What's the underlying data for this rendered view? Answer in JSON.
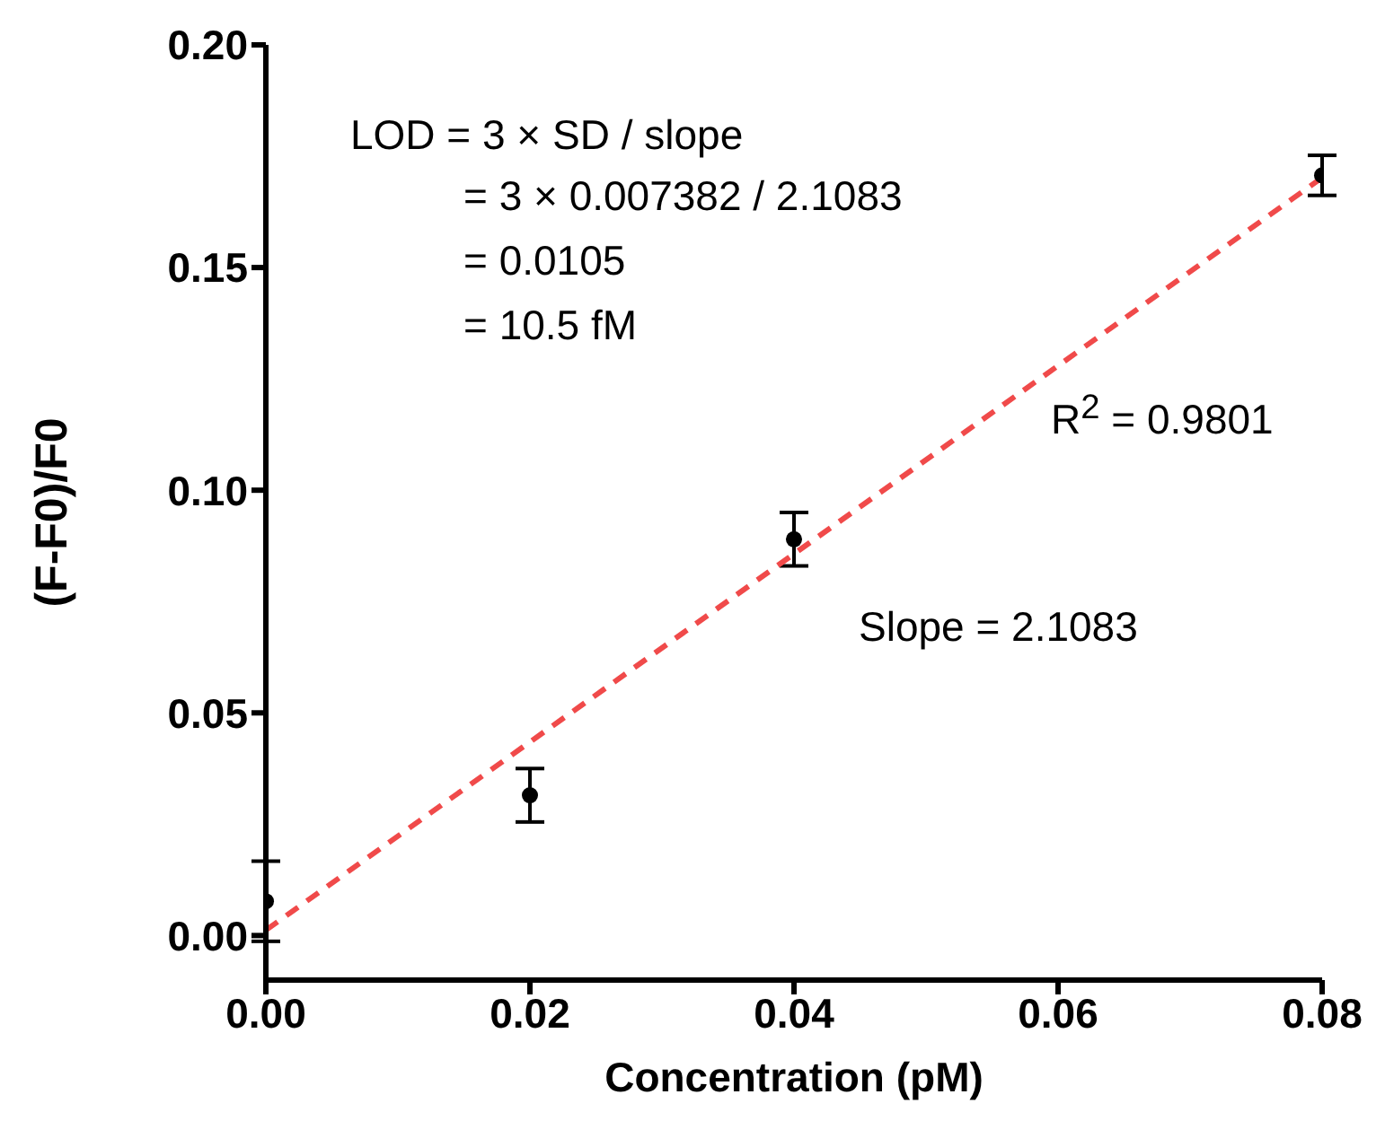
{
  "chart_data": {
    "type": "scatter",
    "xlabel": "Concentration (pM)",
    "ylabel": "(F-F0)/F0",
    "x": [
      0,
      0.02,
      0.04,
      0.08
    ],
    "series": [
      {
        "color": "#000000",
        "marker": "circle",
        "values": [
          0.0077,
          0.0315,
          0.089,
          0.1707
        ],
        "errors": [
          0.009,
          0.006,
          0.006,
          0.0045
        ]
      },
      {
        "type": "line",
        "color": "#f04a4a",
        "x": [
          0,
          0.08
        ],
        "values": [
          0.0012,
          0.1702
        ],
        "line_style": "dashed",
        "marker": "none"
      }
    ],
    "xlim": [
      0,
      0.08
    ],
    "xticks": [
      {
        "value": 0,
        "label": "0.00"
      },
      {
        "value": 0.02,
        "label": "0.02"
      },
      {
        "value": 0.04,
        "label": "0.04"
      },
      {
        "value": 0.06,
        "label": "0.06"
      },
      {
        "value": 0.08,
        "label": "0.08"
      }
    ],
    "ylim": [
      -0.01,
      0.2
    ],
    "yticks": [
      {
        "value": 0,
        "label": "0.00"
      },
      {
        "value": 0.05,
        "label": "0.05"
      },
      {
        "value": 0.1,
        "label": "0.10"
      },
      {
        "value": 0.15,
        "label": "0.15"
      },
      {
        "value": 0.2,
        "label": "0.20"
      }
    ],
    "annotations": [
      "LOD = 3 × SD / slope",
      "= 3 × 0.007382 / 2.1083",
      "= 0.0105",
      "= 10.5 fM",
      "R$^{2}$ = 0.9801",
      "Slope = 2.1083"
    ],
    "grid": false,
    "legend": false
  }
}
